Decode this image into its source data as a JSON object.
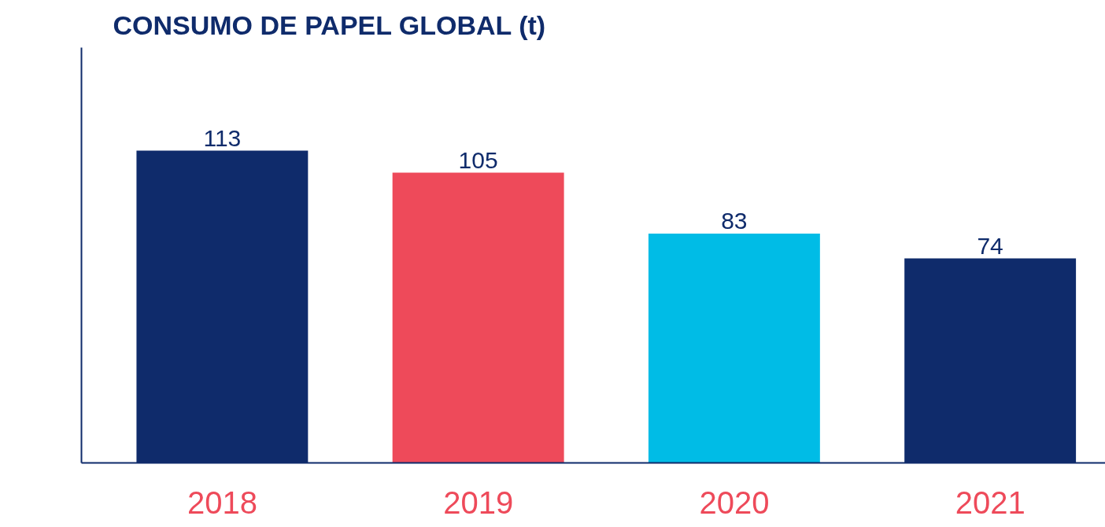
{
  "chart_data": {
    "type": "bar",
    "title": "CONSUMO DE PAPEL GLOBAL (t)",
    "categories": [
      "2018",
      "2019",
      "2020",
      "2021"
    ],
    "values": [
      113,
      105,
      83,
      74
    ],
    "colors": [
      "#0f2b6b",
      "#ee4a5a",
      "#00bce6",
      "#0f2b6b"
    ],
    "data_labels": true
  }
}
